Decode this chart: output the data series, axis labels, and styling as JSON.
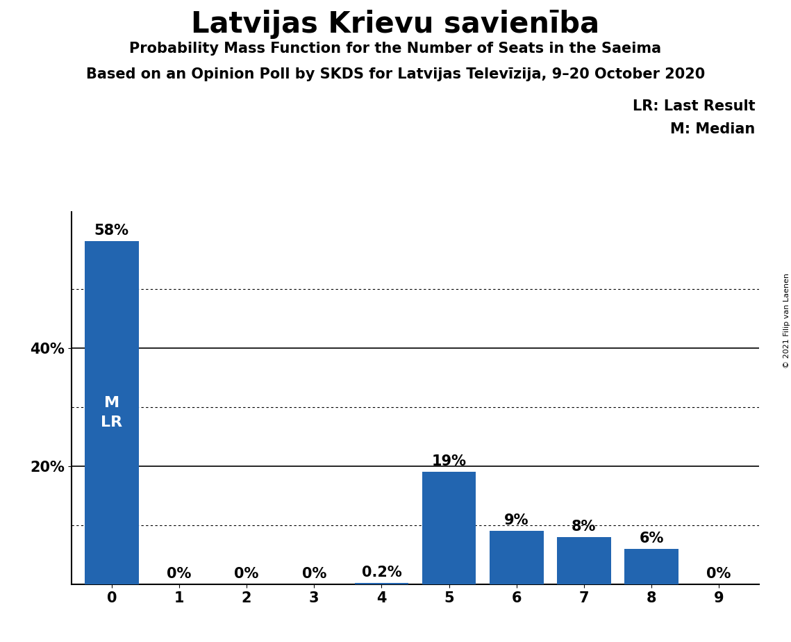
{
  "title": "Latvijas Krievu savienība",
  "subtitle1": "Probability Mass Function for the Number of Seats in the Saeima",
  "subtitle2": "Based on an Opinion Poll by SKDS for Latvijas Televīzija, 9–20 October 2020",
  "copyright": "© 2021 Filip van Laenen",
  "legend_lr": "LR: Last Result",
  "legend_m": "M: Median",
  "categories": [
    0,
    1,
    2,
    3,
    4,
    5,
    6,
    7,
    8,
    9
  ],
  "values": [
    0.58,
    0.0,
    0.0,
    0.0,
    0.002,
    0.19,
    0.09,
    0.08,
    0.06,
    0.0
  ],
  "bar_labels": [
    "58%",
    "0%",
    "0%",
    "0%",
    "0.2%",
    "19%",
    "9%",
    "8%",
    "6%",
    "0%"
  ],
  "bar_color": "#2265b0",
  "background_color": "#ffffff",
  "ylim_max": 0.63,
  "ytick_positions": [
    0.2,
    0.4
  ],
  "ytick_labels": [
    "20%",
    "40%"
  ],
  "dotted_gridlines": [
    0.1,
    0.3,
    0.5
  ],
  "solid_gridlines": [
    0.2,
    0.4
  ],
  "title_fontsize": 30,
  "subtitle_fontsize": 15,
  "tick_fontsize": 15,
  "bar_label_fontsize": 15,
  "legend_fontsize": 15,
  "annotation_fontsize": 16,
  "copyright_fontsize": 8
}
